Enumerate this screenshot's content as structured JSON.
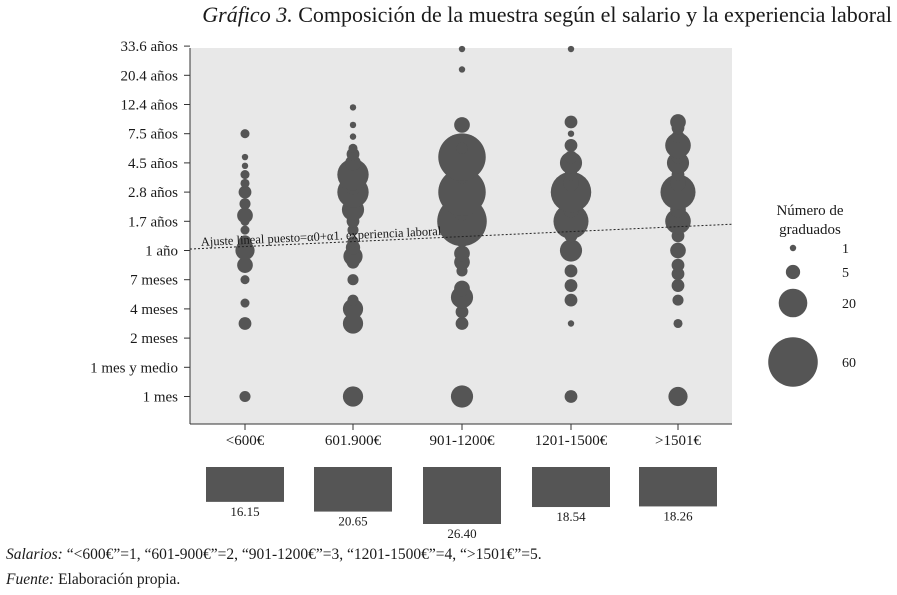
{
  "title": {
    "prefix": "Gráfico 3.",
    "text": "Composición de la muestra según el salario y la experiencia laboral"
  },
  "chart_data": {
    "type": "scatter",
    "categories": [
      "<600€",
      "601.900€",
      "901-1200€",
      "1201-1500€",
      ">1501€"
    ],
    "y_ticks": [
      "1 mes",
      "1 mes y medio",
      "2 meses",
      "4 meses",
      "7 meses",
      "1 año",
      "1.7 años",
      "2.8 años",
      "4.5 años",
      "7.5 años",
      "12.4 años",
      "20.4 años",
      "33.6 años"
    ],
    "grid": false,
    "points": [
      [
        [
          1,
          3
        ],
        [
          3.5,
          4
        ],
        [
          4.2,
          2
        ],
        [
          5,
          2
        ],
        [
          5.5,
          6
        ],
        [
          6,
          9
        ],
        [
          6.3,
          4
        ],
        [
          6.7,
          2
        ],
        [
          7,
          2
        ],
        [
          7.2,
          6
        ],
        [
          7.6,
          3
        ],
        [
          8,
          4
        ],
        [
          8.3,
          2
        ],
        [
          8.6,
          2
        ],
        [
          8.9,
          1
        ],
        [
          9.2,
          1
        ],
        [
          10,
          2
        ]
      ],
      [
        [
          1,
          10
        ],
        [
          3.5,
          10
        ],
        [
          4,
          10
        ],
        [
          4.3,
          3
        ],
        [
          5,
          3
        ],
        [
          5.6,
          4
        ],
        [
          5.8,
          9
        ],
        [
          6.1,
          5
        ],
        [
          6.3,
          3
        ],
        [
          6.7,
          3
        ],
        [
          7,
          4
        ],
        [
          7.4,
          12
        ],
        [
          7.8,
          3
        ],
        [
          8,
          24
        ],
        [
          8.3,
          12
        ],
        [
          8.6,
          24
        ],
        [
          9,
          6
        ],
        [
          9.3,
          4
        ],
        [
          9.5,
          2
        ],
        [
          9.9,
          1
        ],
        [
          10.3,
          1
        ],
        [
          10.9,
          1
        ]
      ],
      [
        [
          1,
          12
        ],
        [
          3.5,
          4
        ],
        [
          3.9,
          4
        ],
        [
          4.4,
          12
        ],
        [
          4.7,
          6
        ],
        [
          5.3,
          3
        ],
        [
          5.6,
          6
        ],
        [
          5.9,
          6
        ],
        [
          6.3,
          3
        ],
        [
          6.5,
          3
        ],
        [
          6.6,
          3
        ],
        [
          7,
          60
        ],
        [
          7.3,
          6
        ],
        [
          7.6,
          4
        ],
        [
          8,
          55
        ],
        [
          8.5,
          4
        ],
        [
          8.9,
          4
        ],
        [
          9.2,
          55
        ],
        [
          9.5,
          3
        ],
        [
          10.3,
          6
        ],
        [
          12.2,
          1
        ],
        [
          12.9,
          1
        ]
      ],
      [
        [
          1,
          4
        ],
        [
          3.5,
          1
        ],
        [
          4.3,
          4
        ],
        [
          4.8,
          4
        ],
        [
          5.3,
          4
        ],
        [
          6,
          12
        ],
        [
          6.5,
          4
        ],
        [
          6.8,
          6
        ],
        [
          7,
          30
        ],
        [
          7.4,
          6
        ],
        [
          7.7,
          3
        ],
        [
          8,
          40
        ],
        [
          8.3,
          6
        ],
        [
          8.6,
          4
        ],
        [
          9,
          12
        ],
        [
          9.2,
          4
        ],
        [
          9.6,
          4
        ],
        [
          10,
          1
        ],
        [
          10.4,
          4
        ],
        [
          12.9,
          1
        ]
      ],
      [
        [
          1,
          9
        ],
        [
          3.5,
          2
        ],
        [
          4.3,
          3
        ],
        [
          4.8,
          4
        ],
        [
          5.2,
          4
        ],
        [
          5.5,
          4
        ],
        [
          6,
          6
        ],
        [
          6.5,
          4
        ],
        [
          6.8,
          4
        ],
        [
          7,
          16
        ],
        [
          7.4,
          6
        ],
        [
          7.7,
          4
        ],
        [
          8,
          30
        ],
        [
          8.3,
          6
        ],
        [
          8.6,
          4
        ],
        [
          9,
          12
        ],
        [
          9.2,
          4
        ],
        [
          9.6,
          16
        ],
        [
          9.9,
          4
        ],
        [
          10.2,
          4
        ],
        [
          10.4,
          6
        ]
      ]
    ],
    "trend_label": "Ajuste lineal puesto=α0+α1. experiencia laboral",
    "trend_line": {
      "y_at_left_edge": 6.05,
      "y_at_right_edge": 6.9
    },
    "legend_title": "Número de graduados",
    "legend_position": "right",
    "legend": [
      1,
      5,
      20,
      60
    ],
    "bars": [
      16.15,
      20.65,
      26.4,
      18.54,
      18.26
    ],
    "bar_labels": [
      "16.15",
      "20.65",
      "26.40",
      "18.54",
      "18.26"
    ],
    "colors": {
      "plot_bg": "#e8e8e8",
      "marker": "#555555"
    }
  },
  "notes": {
    "salarios_label": "Salarios:",
    "salarios_text": " “<600€”=1, “601-900€”=2, “901-1200€”=3, “1201-1500€”=4, “>1501€”=5.",
    "fuente_label": "Fuente:",
    "fuente_text": " Elaboración propia."
  }
}
